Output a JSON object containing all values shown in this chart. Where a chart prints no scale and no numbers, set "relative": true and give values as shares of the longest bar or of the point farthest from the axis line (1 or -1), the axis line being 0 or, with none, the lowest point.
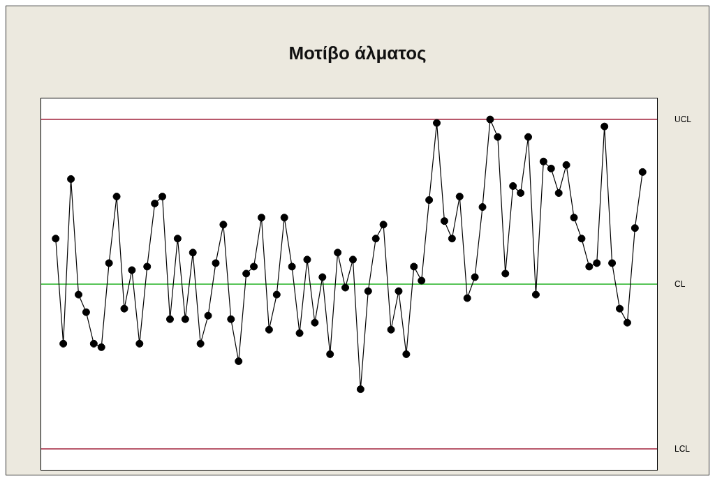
{
  "chart_data": {
    "type": "line",
    "title": "Μοτίβο άλματος",
    "relative": true,
    "marker": "circle",
    "categories": [
      null,
      null,
      null,
      null,
      null,
      null,
      null,
      null,
      null,
      null,
      null,
      null,
      null,
      null,
      null,
      null,
      null,
      null,
      null,
      null,
      null,
      null,
      null,
      null,
      null,
      null,
      null,
      null,
      null,
      null,
      null,
      null,
      null,
      null,
      null,
      null,
      null,
      null,
      null,
      null,
      null,
      null,
      null,
      null,
      null,
      null,
      null,
      null,
      null,
      null,
      null,
      null,
      null,
      null,
      null,
      null,
      null,
      null,
      null,
      null,
      null,
      null,
      null,
      null,
      null,
      null,
      null,
      null,
      null,
      null,
      null,
      null,
      null,
      null,
      null,
      null,
      null,
      null
    ],
    "series": [
      {
        "color": "#000000",
        "values": [
          0.66,
          0.36,
          0.83,
          0.5,
          0.45,
          0.36,
          0.35,
          0.59,
          0.78,
          0.46,
          0.57,
          0.36,
          0.58,
          0.76,
          0.78,
          0.43,
          0.66,
          0.43,
          0.62,
          0.36,
          0.44,
          0.59,
          0.7,
          0.43,
          0.31,
          0.56,
          0.58,
          0.72,
          0.4,
          0.5,
          0.72,
          0.58,
          0.39,
          0.6,
          0.42,
          0.55,
          0.33,
          0.62,
          0.52,
          0.6,
          0.23,
          0.51,
          0.66,
          0.7,
          0.4,
          0.51,
          0.33,
          0.58,
          0.54,
          0.77,
          0.99,
          0.71,
          0.66,
          0.78,
          0.49,
          0.55,
          0.75,
          1,
          0.95,
          0.56,
          0.81,
          0.79,
          0.95,
          0.5,
          0.88,
          0.86,
          0.79,
          0.87,
          0.72,
          0.66,
          0.58,
          0.59,
          0.98,
          0.59,
          0.46,
          0.42,
          0.69,
          0.85
        ]
      }
    ],
    "ref_lines": [
      {
        "axis": "y",
        "value": 1.0,
        "label": "UCL",
        "color": "#a0213a"
      },
      {
        "axis": "y",
        "value": 0.53,
        "label": "CL",
        "color": "#22b022"
      },
      {
        "axis": "y",
        "value": 0.06,
        "label": "LCL",
        "color": "#a0213a"
      }
    ]
  }
}
